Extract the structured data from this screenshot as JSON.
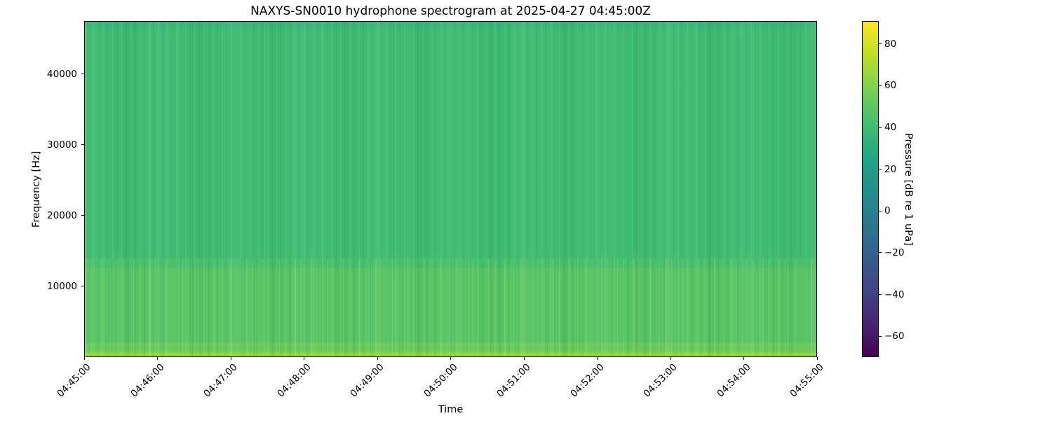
{
  "figure": {
    "background": "#ffffff",
    "text_color": "#000000"
  },
  "chart_data": {
    "type": "heatmap",
    "title": "NAXYS-SN0010 hydrophone spectrogram at 2025-04-27 04:45:00Z",
    "xlabel": "Time",
    "ylabel": "Frequency [Hz]",
    "x_tick_labels": [
      "04:45:00",
      "04:46:00",
      "04:47:00",
      "04:48:00",
      "04:49:00",
      "04:50:00",
      "04:51:00",
      "04:52:00",
      "04:53:00",
      "04:54:00",
      "04:55:00"
    ],
    "y_tick_values": [
      10000,
      20000,
      30000,
      40000
    ],
    "ylim": [
      0,
      47500
    ],
    "grid": false,
    "legend": "none",
    "colorbar": {
      "label": "Pressure [dB re 1 uPa]",
      "tick_values": [
        80,
        60,
        40,
        20,
        0,
        -20,
        -40,
        -60
      ],
      "vmin": -70,
      "vmax": 91,
      "colormap": "viridis",
      "position": "right"
    },
    "colormap_stops": [
      "#440154",
      "#482475",
      "#414487",
      "#355f8d",
      "#2a788e",
      "#21918c",
      "#22a884",
      "#44bf70",
      "#7ad151",
      "#bddf26",
      "#fde725"
    ],
    "bands": [
      {
        "f_low": 46500,
        "f_high": 47500,
        "level_db": 37
      },
      {
        "f_low": 14000,
        "f_high": 46500,
        "level_db": 40
      },
      {
        "f_low": 12500,
        "f_high": 14000,
        "level_db": 44
      },
      {
        "f_low": 2000,
        "f_high": 12500,
        "level_db": 48
      },
      {
        "f_low": 500,
        "f_high": 2000,
        "level_db": 53
      },
      {
        "f_low": 0,
        "f_high": 500,
        "level_db": 64
      }
    ]
  }
}
